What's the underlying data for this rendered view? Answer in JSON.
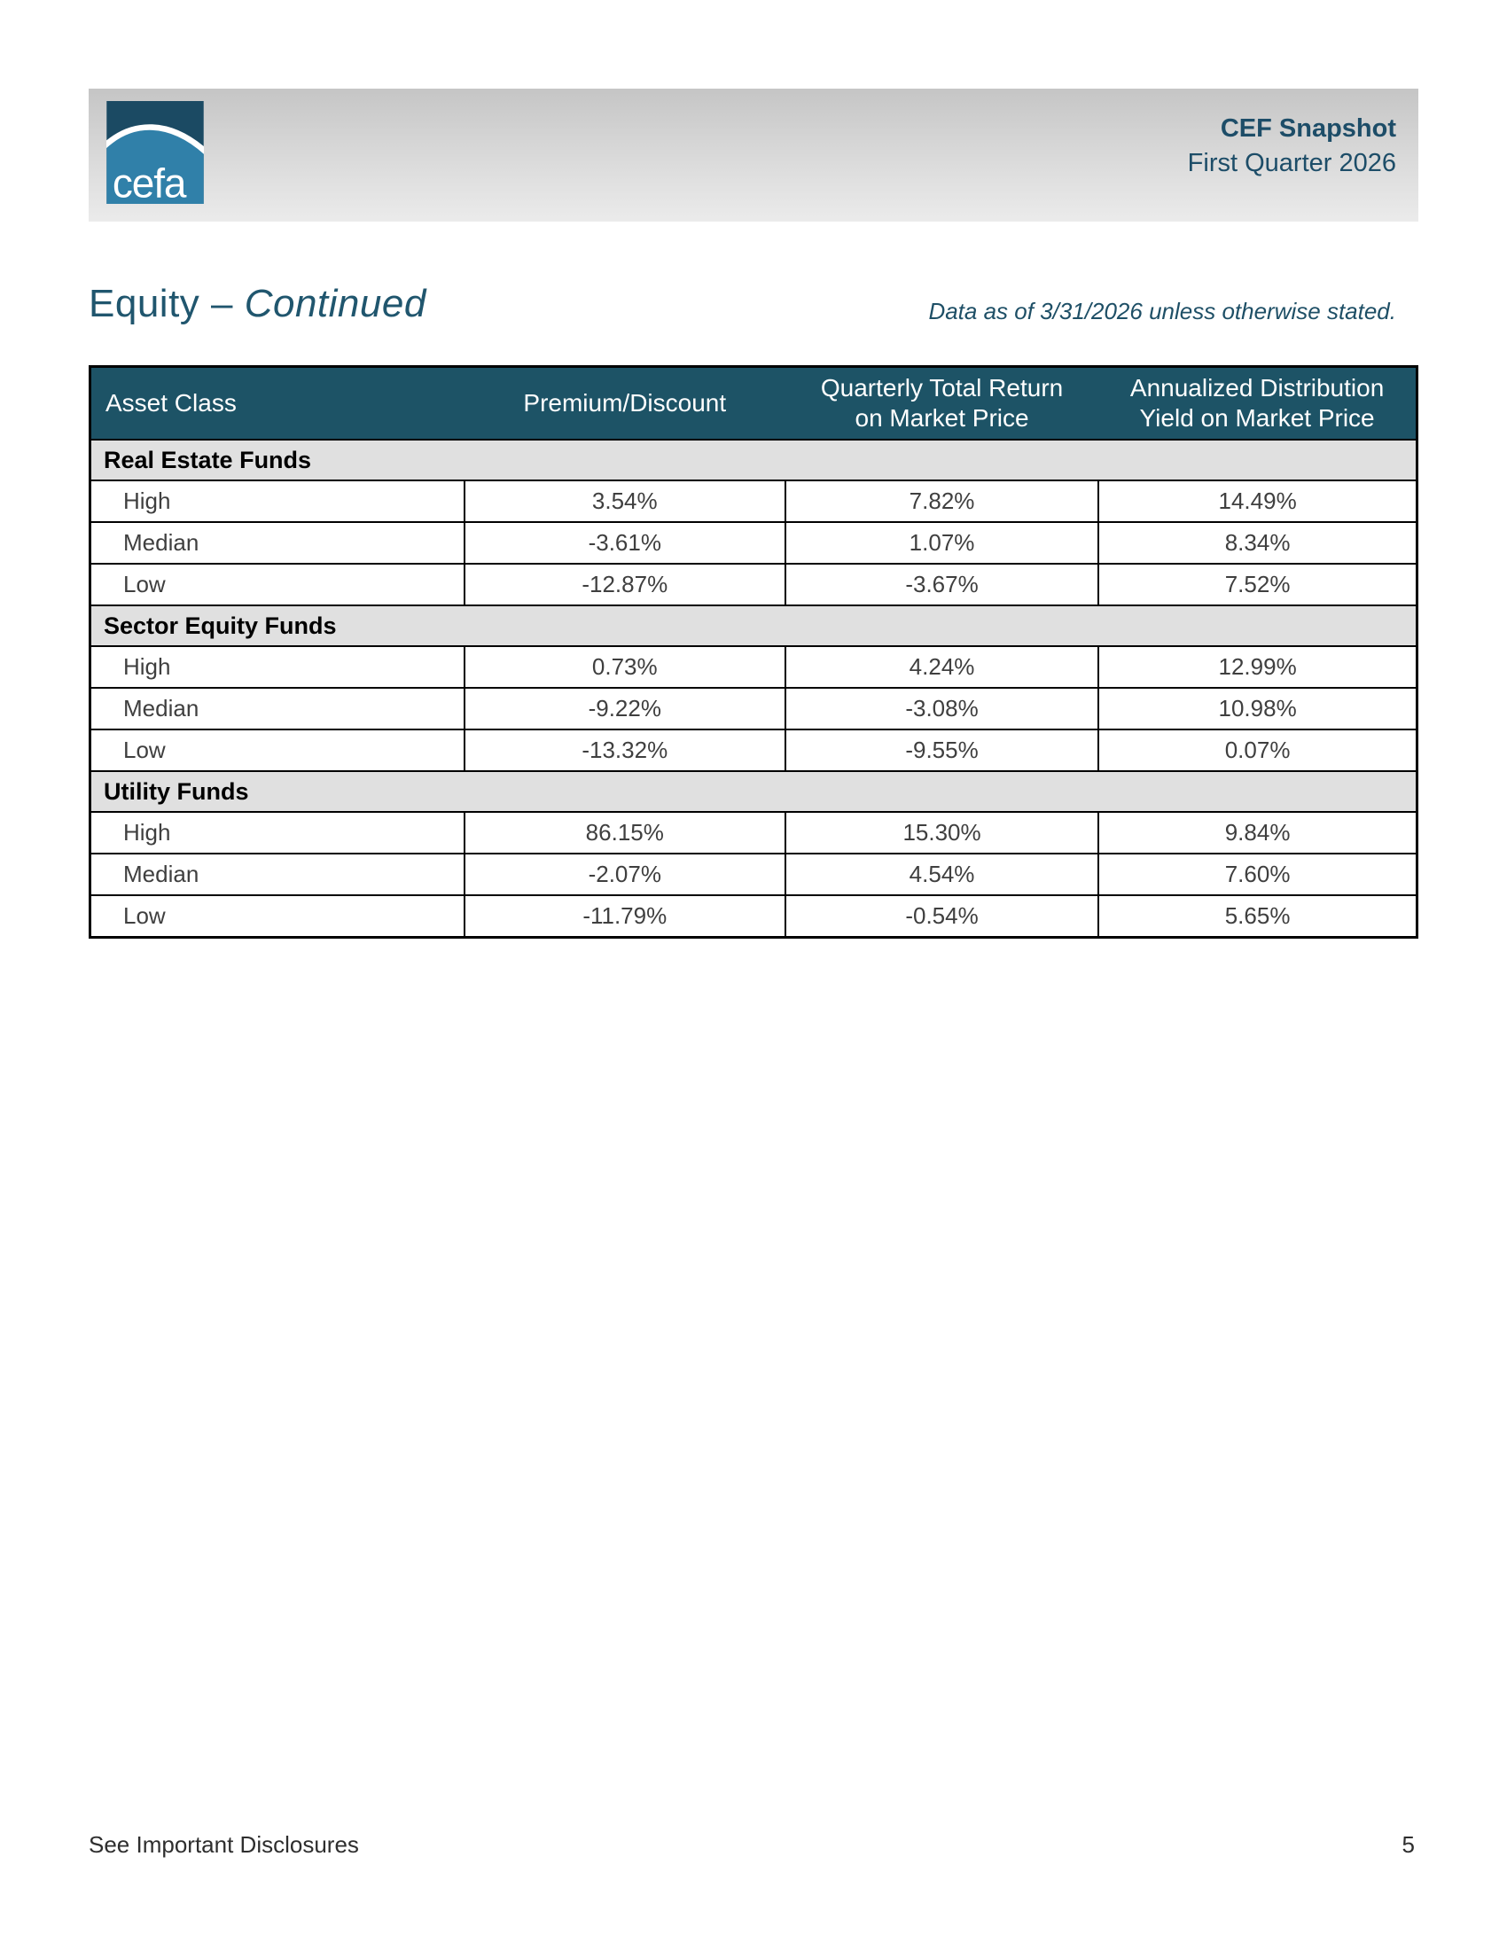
{
  "header": {
    "logo_text": "cefa",
    "title": "CEF Snapshot",
    "subtitle": "First Quarter 2026",
    "brand_colors": {
      "logo_dark_blue": "#1b4a63",
      "logo_light_blue": "#3080a9",
      "text_blue": "#1d4d68"
    }
  },
  "section": {
    "title_prefix": "Equity – ",
    "title_emphasis": "Continued",
    "data_note": "Data as of 3/31/2026 unless otherwise stated."
  },
  "table": {
    "header_bg": "#1d5366",
    "group_row_bg": "#e0e0e0",
    "columns": [
      {
        "lines": [
          "Asset Class"
        ]
      },
      {
        "lines": [
          "Premium/Discount"
        ]
      },
      {
        "lines": [
          "Quarterly Total Return",
          "on Market Price"
        ]
      },
      {
        "lines": [
          "Annualized Distribution",
          "Yield on Market Price"
        ]
      }
    ],
    "groups": [
      {
        "name": "Real Estate Funds",
        "rows": [
          {
            "label": "High",
            "values": [
              "3.54%",
              "7.82%",
              "14.49%"
            ]
          },
          {
            "label": "Median",
            "values": [
              "-3.61%",
              "1.07%",
              "8.34%"
            ]
          },
          {
            "label": "Low",
            "values": [
              "-12.87%",
              "-3.67%",
              "7.52%"
            ]
          }
        ]
      },
      {
        "name": "Sector Equity Funds",
        "rows": [
          {
            "label": "High",
            "values": [
              "0.73%",
              "4.24%",
              "12.99%"
            ]
          },
          {
            "label": "Median",
            "values": [
              "-9.22%",
              "-3.08%",
              "10.98%"
            ]
          },
          {
            "label": "Low",
            "values": [
              "-13.32%",
              "-9.55%",
              "0.07%"
            ]
          }
        ]
      },
      {
        "name": "Utility Funds",
        "rows": [
          {
            "label": "High",
            "values": [
              "86.15%",
              "15.30%",
              "9.84%"
            ]
          },
          {
            "label": "Median",
            "values": [
              "-2.07%",
              "4.54%",
              "7.60%"
            ]
          },
          {
            "label": "Low",
            "values": [
              "-11.79%",
              "-0.54%",
              "5.65%"
            ]
          }
        ]
      }
    ]
  },
  "footer": {
    "left": "See Important Disclosures",
    "page_number": "5"
  }
}
